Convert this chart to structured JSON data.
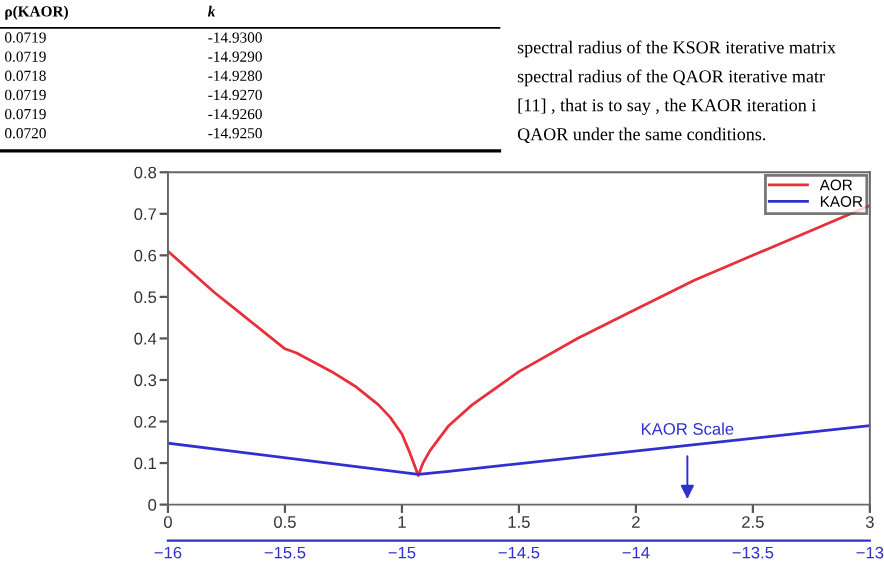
{
  "chart_data": {
    "type": "line",
    "annotations": [
      "ρ(KAOR)",
      "k",
      "0.0719",
      "-14.9300",
      "0.0719",
      "-14.9290",
      "0.0718",
      "-14.9280",
      "0.0719",
      "-14.9270",
      "0.0719",
      "-14.9260",
      "0.0720",
      "-14.9250",
      "spectral radius of the KSOR iterative matrix",
      "spectral radius of the QAOR iterative matr",
      "[11] , that is to say , the KAOR iteration i",
      "QAOR under the same conditions.",
      {
        "text": "KAOR Scale",
        "x": 2.22,
        "y": 0.13
      }
    ],
    "series": [
      {
        "name": "AOR",
        "color": "#e8303c",
        "x": [
          0,
          0.1,
          0.2,
          0.3,
          0.4,
          0.5,
          0.55,
          0.6,
          0.7,
          0.8,
          0.9,
          0.95,
          1.0,
          1.03,
          1.05,
          1.07,
          1.09,
          1.12,
          1.2,
          1.3,
          1.5,
          1.75,
          2.0,
          2.25,
          2.5,
          2.75,
          3.0
        ],
        "values": [
          0.61,
          0.56,
          0.51,
          0.465,
          0.42,
          0.375,
          0.365,
          0.35,
          0.32,
          0.285,
          0.24,
          0.21,
          0.17,
          0.13,
          0.1,
          0.07,
          0.1,
          0.13,
          0.19,
          0.24,
          0.32,
          0.4,
          0.47,
          0.54,
          0.6,
          0.66,
          0.72
        ]
      },
      {
        "name": "KAOR",
        "color": "#3030d0",
        "x": [
          0,
          1.07,
          1.2,
          3.0
        ],
        "values": [
          0.148,
          0.073,
          0.08,
          0.19
        ]
      }
    ],
    "xlim": [
      0,
      3
    ],
    "xticks": [
      0,
      0.5,
      1,
      1.5,
      2,
      2.5,
      3
    ],
    "ylim": [
      0,
      0.8
    ],
    "yticks": [
      0,
      0.1,
      0.2,
      0.3,
      0.4,
      0.5,
      0.6,
      0.7,
      0.8
    ],
    "x2lim": [
      -16,
      -13
    ],
    "x2ticks": [
      -16,
      -15.5,
      -15,
      -14.5,
      -14,
      -13.5,
      -13
    ],
    "grid": false,
    "legend": "top right"
  }
}
